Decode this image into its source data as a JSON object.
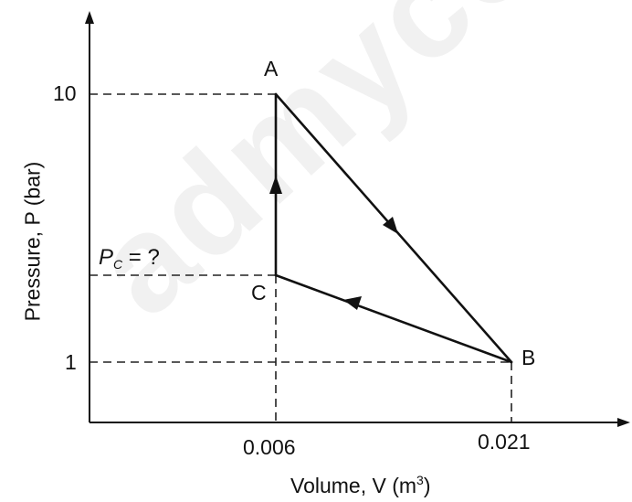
{
  "watermark": "admycoo",
  "axes": {
    "x_label_prefix": "Volume, V (m",
    "x_label_sup": "3",
    "x_label_suffix": ")",
    "y_label": "Pressure, P (bar)"
  },
  "ticks": {
    "x": [
      "0.006",
      "0.021"
    ],
    "y": [
      "10",
      "1"
    ]
  },
  "points": {
    "A": "A",
    "B": "B",
    "C": "C"
  },
  "pc_label": {
    "main": "P",
    "sub": "C",
    "rest": " = ?"
  },
  "colors": {
    "line": "#111111",
    "dashed": "#222222",
    "watermark": "#f1f1f1"
  }
}
